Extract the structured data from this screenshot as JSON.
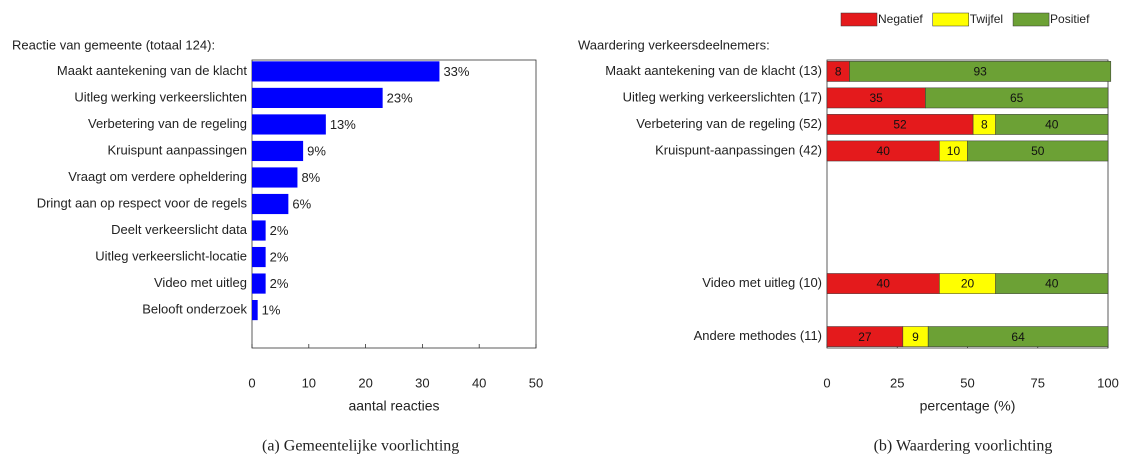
{
  "chart_data": [
    {
      "type": "bar",
      "orientation": "horizontal",
      "title": "Reactie van gemeente (totaal 124):",
      "categories": [
        "Maakt aantekening van de klacht",
        "Uitleg werking verkeerslichten",
        "Verbetering van de regeling",
        "Kruispunt aanpassingen",
        "Vraagt om verdere opheldering",
        "Dringt aan op respect voor de regels",
        "Deelt verkeerslicht data",
        "Uitleg verkeerslicht-locatie",
        "Video met uitleg",
        "Belooft onderzoek",
        null
      ],
      "values": [
        33,
        23,
        13,
        9,
        8,
        6.4,
        2.4,
        2.4,
        2.4,
        1,
        null
      ],
      "value_labels": [
        "33%",
        "23%",
        "13%",
        "9%",
        "8%",
        "6%",
        "2%",
        "2%",
        "2%",
        "1%",
        null
      ],
      "color": "#0000ff",
      "xlabel": "aantal reacties",
      "xlim": [
        0,
        50
      ],
      "xticks": [
        0,
        10,
        20,
        30,
        40,
        50
      ],
      "grid": false,
      "caption": "(a) Gemeentelijke voorlichting"
    },
    {
      "type": "stacked-bar",
      "orientation": "horizontal",
      "title": "Waardering verkeersdeelnemers:",
      "categories": [
        "Maakt aantekening van de klacht (13)",
        "Uitleg werking verkeerslichten (17)",
        "Verbetering van de regeling (52)",
        "Kruispunt-aanpassingen (42)",
        null,
        null,
        null,
        null,
        "Video met uitleg (10)",
        null,
        "Andere methodes (11)"
      ],
      "series": [
        {
          "name": "Negatief",
          "color": "#e41a1c",
          "values": [
            8,
            35,
            52,
            40,
            null,
            null,
            null,
            null,
            40,
            null,
            27
          ]
        },
        {
          "name": "Twijfel",
          "color": "#ffff00",
          "values": [
            null,
            null,
            8,
            10,
            null,
            null,
            null,
            null,
            20,
            null,
            9
          ]
        },
        {
          "name": "Positief",
          "color": "#6ca135",
          "values": [
            93,
            65,
            40,
            50,
            null,
            null,
            null,
            null,
            40,
            null,
            64
          ]
        }
      ],
      "xlabel": "percentage (%)",
      "xlim": [
        0,
        100
      ],
      "xticks": [
        0,
        25,
        50,
        75,
        100
      ],
      "grid": false,
      "legend": "top",
      "caption": "(b) Waardering voorlichting"
    }
  ]
}
